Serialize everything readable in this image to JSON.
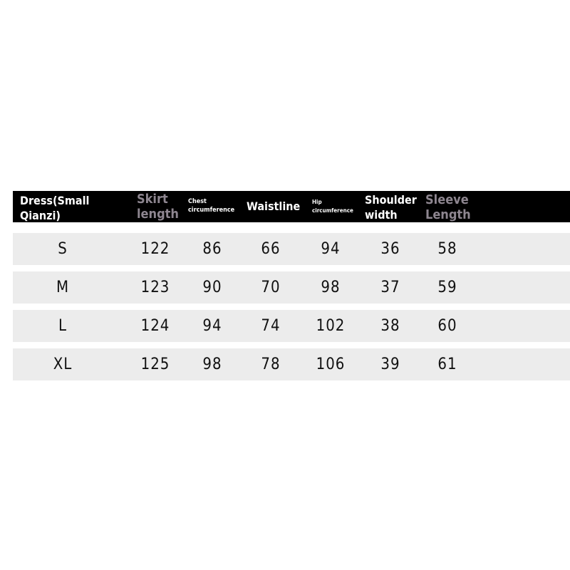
{
  "headers": [
    "Dress(Small\nQianzi)",
    "Skirt\nlength",
    "Chest\ncircumference",
    "Waistline",
    "Hip\ncircumference",
    "Shoulder\nwidth",
    "Sleeve\nLength"
  ],
  "rows": [
    [
      "S",
      "122",
      "86",
      "66",
      "94",
      "36",
      "58"
    ],
    [
      "M",
      "123",
      "90",
      "70",
      "98",
      "37",
      "59"
    ],
    [
      "L",
      "124",
      "94",
      "74",
      "102",
      "38",
      "60"
    ],
    [
      "XL",
      "125",
      "98",
      "78",
      "106",
      "39",
      "61"
    ]
  ],
  "colors": {
    "header_bg": "#000000",
    "row_bg": "#ececec",
    "gray_header_text": "#8e8690"
  }
}
